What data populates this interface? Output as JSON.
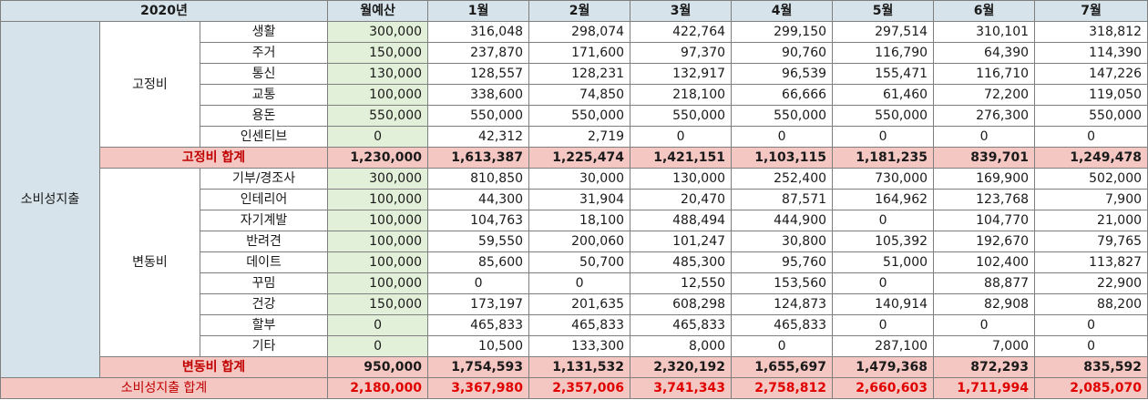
{
  "header": {
    "year": "2020년",
    "budget": "월예산",
    "months": [
      "1월",
      "2월",
      "3월",
      "4월",
      "5월",
      "6월",
      "7월"
    ]
  },
  "category": "소비성지출",
  "fixed": {
    "label": "고정비",
    "rows": [
      {
        "item": "생활",
        "budget": "300,000",
        "values": [
          "316,048",
          "298,074",
          "422,764",
          "299,150",
          "297,514",
          "310,101",
          "318,812"
        ]
      },
      {
        "item": "주거",
        "budget": "150,000",
        "values": [
          "237,870",
          "171,600",
          "97,370",
          "90,760",
          "116,790",
          "64,390",
          "114,390"
        ]
      },
      {
        "item": "통신",
        "budget": "130,000",
        "values": [
          "128,557",
          "128,231",
          "132,917",
          "96,539",
          "155,471",
          "116,710",
          "147,226"
        ]
      },
      {
        "item": "교통",
        "budget": "100,000",
        "values": [
          "338,600",
          "74,850",
          "218,100",
          "66,666",
          "61,460",
          "72,200",
          "119,050"
        ]
      },
      {
        "item": "용돈",
        "budget": "550,000",
        "values": [
          "550,000",
          "550,000",
          "550,000",
          "550,000",
          "550,000",
          "276,300",
          "550,000"
        ]
      },
      {
        "item": "인센티브",
        "budget": "0",
        "values": [
          "42,312",
          "2,719",
          "0",
          "0",
          "0",
          "0",
          "0"
        ]
      }
    ],
    "total_label": "고정비 합계",
    "total_budget": "1,230,000",
    "totals": [
      "1,613,387",
      "1,225,474",
      "1,421,151",
      "1,103,115",
      "1,181,235",
      "839,701",
      "1,249,478"
    ]
  },
  "variable": {
    "label": "변동비",
    "rows": [
      {
        "item": "기부/경조사",
        "budget": "300,000",
        "values": [
          "810,850",
          "30,000",
          "130,000",
          "252,400",
          "730,000",
          "169,900",
          "502,000"
        ]
      },
      {
        "item": "인테리어",
        "budget": "100,000",
        "values": [
          "44,300",
          "31,904",
          "20,470",
          "87,571",
          "164,962",
          "123,768",
          "7,900"
        ]
      },
      {
        "item": "자기계발",
        "budget": "100,000",
        "values": [
          "104,763",
          "18,100",
          "488,494",
          "444,900",
          "0",
          "104,770",
          "21,000"
        ]
      },
      {
        "item": "반려견",
        "budget": "100,000",
        "values": [
          "59,550",
          "200,060",
          "101,247",
          "30,800",
          "105,392",
          "192,670",
          "79,765"
        ]
      },
      {
        "item": "데이트",
        "budget": "100,000",
        "values": [
          "85,600",
          "50,700",
          "485,300",
          "95,760",
          "51,000",
          "102,400",
          "113,827"
        ]
      },
      {
        "item": "꾸밈",
        "budget": "100,000",
        "values": [
          "0",
          "0",
          "12,550",
          "153,560",
          "0",
          "88,877",
          "22,900"
        ]
      },
      {
        "item": "건강",
        "budget": "150,000",
        "values": [
          "173,197",
          "201,635",
          "608,298",
          "124,873",
          "140,914",
          "82,908",
          "88,200"
        ]
      },
      {
        "item": "할부",
        "budget": "0",
        "values": [
          "465,833",
          "465,833",
          "465,833",
          "465,833",
          "0",
          "0",
          "0"
        ]
      },
      {
        "item": "기타",
        "budget": "0",
        "values": [
          "10,500",
          "133,300",
          "8,000",
          "0",
          "287,100",
          "7,000",
          "0"
        ]
      }
    ],
    "total_label": "변동비 합계",
    "total_budget": "950,000",
    "totals": [
      "1,754,593",
      "1,131,532",
      "2,320,192",
      "1,655,697",
      "1,479,368",
      "872,293",
      "835,592"
    ]
  },
  "grand": {
    "label": "소비성지출 합계",
    "budget": "2,180,000",
    "totals": [
      "3,367,980",
      "2,357,006",
      "3,741,343",
      "2,758,812",
      "2,660,603",
      "1,711,994",
      "2,085,070"
    ]
  },
  "colors": {
    "header_bg": "#d6e3ea",
    "budget_bg": "#e2efd9",
    "subtotal_bg": "#f4c7c3",
    "subtotal_text": "#c00000",
    "grand_text": "#e00000"
  }
}
